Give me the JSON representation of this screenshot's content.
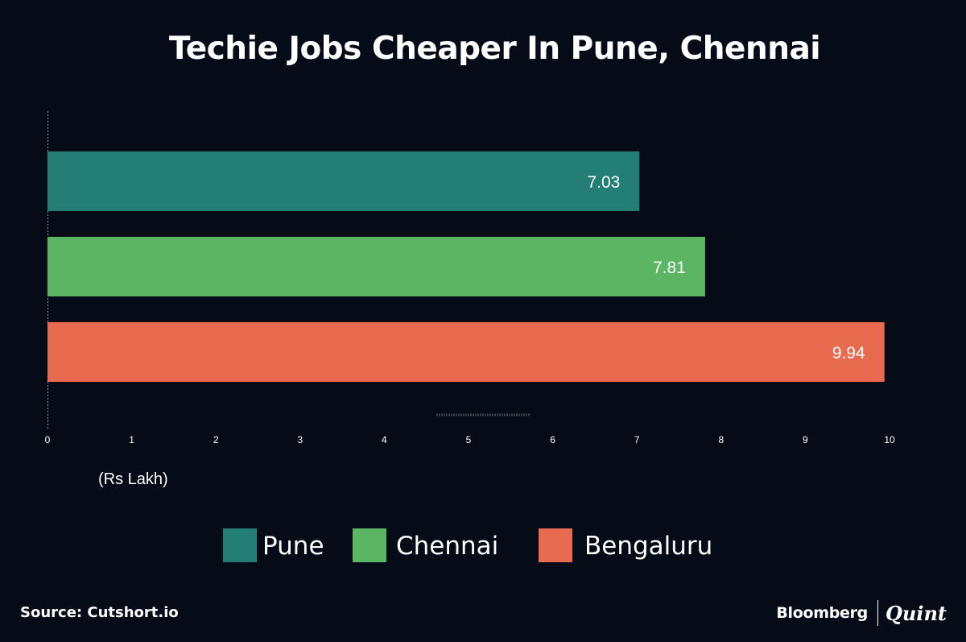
{
  "chart_data": {
    "type": "bar",
    "orientation": "horizontal",
    "title": "Techie Jobs Cheaper In Pune, Chennai",
    "categories": [
      "Pune",
      "Chennai",
      "Bengaluru"
    ],
    "values": [
      7.03,
      7.81,
      9.94
    ],
    "value_labels": [
      "7.03",
      "7.81",
      "9.94"
    ],
    "colors": [
      "#237f76",
      "#5cb562",
      "#e96b4f"
    ],
    "xlim": [
      0,
      10
    ],
    "x_ticks": [
      "0",
      "1",
      "2",
      "3",
      "4",
      "5",
      "6",
      "7",
      "8",
      "9",
      "10"
    ],
    "xlabel": "(Rs Lakh)",
    "legend": {
      "position": "bottom",
      "entries": [
        "Pune",
        "Chennai",
        "Bengaluru"
      ]
    },
    "grid": false
  },
  "source": "Source: Cutshort.io",
  "branding": {
    "primary": "Bloomberg",
    "secondary": "Quint"
  }
}
